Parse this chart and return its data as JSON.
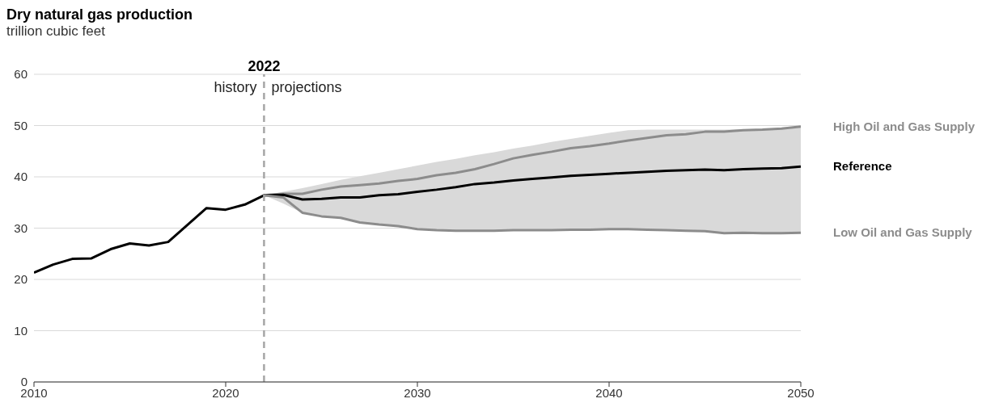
{
  "chart_data": {
    "type": "line",
    "title": "Dry natural gas production",
    "subtitle": "trillion cubic feet",
    "x": [
      2010,
      2011,
      2012,
      2013,
      2014,
      2015,
      2016,
      2017,
      2018,
      2019,
      2020,
      2021,
      2022,
      2023,
      2024,
      2025,
      2026,
      2027,
      2028,
      2029,
      2030,
      2031,
      2032,
      2033,
      2034,
      2035,
      2036,
      2037,
      2038,
      2039,
      2040,
      2041,
      2042,
      2043,
      2044,
      2045,
      2046,
      2047,
      2048,
      2049,
      2050
    ],
    "series": [
      {
        "name": "High Oil and Gas Supply",
        "color": "#8c8c8c",
        "values": [
          null,
          null,
          null,
          null,
          null,
          null,
          null,
          null,
          null,
          null,
          null,
          null,
          36.4,
          36.7,
          36.7,
          37.5,
          38.1,
          38.4,
          38.7,
          39.2,
          39.6,
          40.3,
          40.8,
          41.5,
          42.5,
          43.6,
          44.3,
          44.9,
          45.6,
          46.0,
          46.5,
          47.1,
          47.6,
          48.1,
          48.3,
          48.8,
          48.8,
          49.1,
          49.2,
          49.4,
          49.8
        ]
      },
      {
        "name": "Reference",
        "color": "#000000",
        "values": [
          21.3,
          22.9,
          24.0,
          24.1,
          25.9,
          27.0,
          26.6,
          27.3,
          30.6,
          33.9,
          33.6,
          34.6,
          36.4,
          36.5,
          35.6,
          35.7,
          36.0,
          36.0,
          36.4,
          36.6,
          37.1,
          37.5,
          38.0,
          38.6,
          38.9,
          39.3,
          39.6,
          39.9,
          40.2,
          40.4,
          40.6,
          40.8,
          41.0,
          41.2,
          41.3,
          41.4,
          41.3,
          41.5,
          41.6,
          41.7,
          42.0
        ],
        "lower": [
          null,
          null,
          null,
          null,
          null,
          null,
          null,
          null,
          null,
          null,
          null,
          null,
          36.4,
          34.8,
          33.0,
          32.3,
          32.0,
          31.1,
          30.7,
          30.4,
          29.8,
          29.6,
          29.5,
          29.5,
          29.5,
          29.6,
          29.6,
          29.6,
          29.7,
          29.7,
          29.8,
          29.8,
          29.7,
          29.6,
          29.5,
          29.4,
          29.0,
          29.1,
          29.0,
          29.0,
          29.1
        ],
        "upper": [
          null,
          null,
          null,
          null,
          null,
          null,
          null,
          null,
          null,
          null,
          null,
          null,
          36.4,
          37.1,
          37.8,
          38.6,
          39.4,
          40.1,
          40.8,
          41.5,
          42.2,
          42.9,
          43.5,
          44.2,
          44.8,
          45.5,
          46.1,
          46.8,
          47.4,
          48.0,
          48.6,
          49.1,
          49.2,
          49.2,
          49.2,
          49.2,
          49.2,
          49.3,
          49.3,
          49.5,
          49.8
        ]
      },
      {
        "name": "Low Oil and Gas Supply",
        "color": "#8c8c8c",
        "values": [
          null,
          null,
          null,
          null,
          null,
          null,
          null,
          null,
          null,
          null,
          null,
          null,
          36.4,
          36.0,
          33.0,
          32.3,
          32.0,
          31.1,
          30.7,
          30.4,
          29.8,
          29.6,
          29.5,
          29.5,
          29.5,
          29.6,
          29.6,
          29.6,
          29.7,
          29.7,
          29.8,
          29.8,
          29.7,
          29.6,
          29.5,
          29.4,
          29.0,
          29.1,
          29.0,
          29.0,
          29.1
        ]
      }
    ],
    "xlim": [
      2010,
      2050
    ],
    "xticks": [
      2010,
      2020,
      2030,
      2040,
      2050
    ],
    "ylim": [
      0,
      60
    ],
    "yticks": [
      0,
      10,
      20,
      30,
      40,
      50,
      60
    ],
    "grid": "y",
    "marker": "none",
    "line_style": "solid",
    "ref_lines": [
      {
        "axis": "x",
        "value": 2022,
        "label": "2022",
        "color": "#a6a6a6",
        "line_style": "dashed"
      }
    ],
    "annotations": [
      {
        "text": "history",
        "x": 2022,
        "y": 57.5
      },
      {
        "text": "projections",
        "x": 2022,
        "y": 57.5
      }
    ]
  }
}
